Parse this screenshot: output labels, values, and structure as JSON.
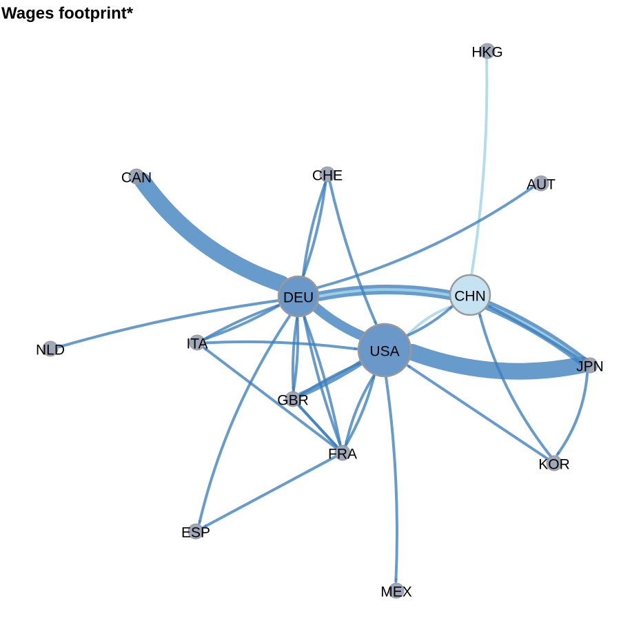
{
  "title": "Wages footprint*",
  "colors": {
    "edge_main": "#3c7fbd",
    "edge_light": "#a6d6ea",
    "node_dark": "#6a98c8",
    "node_light": "#c4e2f0",
    "node_grey": "#8e99ad",
    "node_border": "#999999"
  },
  "nodes": [
    {
      "id": "HKG",
      "label": "HKG",
      "size": "small"
    },
    {
      "id": "CAN",
      "label": "CAN",
      "size": "small"
    },
    {
      "id": "CHE",
      "label": "CHE",
      "size": "small"
    },
    {
      "id": "AUT",
      "label": "AUT",
      "size": "small"
    },
    {
      "id": "DEU",
      "label": "DEU",
      "size": "large"
    },
    {
      "id": "CHN",
      "label": "CHN",
      "size": "large"
    },
    {
      "id": "NLD",
      "label": "NLD",
      "size": "small"
    },
    {
      "id": "ITA",
      "label": "ITA",
      "size": "small"
    },
    {
      "id": "USA",
      "label": "USA",
      "size": "largest"
    },
    {
      "id": "JPN",
      "label": "JPN",
      "size": "small"
    },
    {
      "id": "GBR",
      "label": "GBR",
      "size": "small"
    },
    {
      "id": "FRA",
      "label": "FRA",
      "size": "small"
    },
    {
      "id": "KOR",
      "label": "KOR",
      "size": "small"
    },
    {
      "id": "ESP",
      "label": "ESP",
      "size": "small"
    },
    {
      "id": "MEX",
      "label": "MEX",
      "size": "small"
    }
  ],
  "edges": [
    {
      "from": "CAN",
      "to": "DEU",
      "weight": "very-heavy",
      "color": "main"
    },
    {
      "from": "CHN",
      "to": "DEU",
      "weight": "heavy",
      "color": "main"
    },
    {
      "from": "JPN",
      "to": "USA",
      "weight": "very-heavy",
      "color": "main"
    },
    {
      "from": "CHN",
      "to": "JPN",
      "weight": "heavy",
      "color": "main"
    },
    {
      "from": "DEU",
      "to": "USA",
      "weight": "heavy",
      "color": "main"
    },
    {
      "from": "CHN",
      "to": "HKG",
      "weight": "light",
      "color": "light"
    },
    {
      "from": "CHN",
      "to": "DEU",
      "weight": "light",
      "color": "light"
    },
    {
      "from": "CHN",
      "to": "JPN",
      "weight": "light",
      "color": "light"
    },
    {
      "from": "CHN",
      "to": "USA",
      "weight": "light",
      "color": "light"
    },
    {
      "from": "DEU",
      "to": "AUT",
      "weight": "light",
      "color": "main"
    },
    {
      "from": "DEU",
      "to": "NLD",
      "weight": "light",
      "color": "main"
    },
    {
      "from": "DEU",
      "to": "CHE",
      "weight": "light",
      "color": "main"
    },
    {
      "from": "CHE",
      "to": "DEU",
      "weight": "light",
      "color": "main"
    },
    {
      "from": "CHE",
      "to": "USA",
      "weight": "light",
      "color": "main"
    },
    {
      "from": "ITA",
      "to": "DEU",
      "weight": "light",
      "color": "main"
    },
    {
      "from": "DEU",
      "to": "ITA",
      "weight": "light",
      "color": "main"
    },
    {
      "from": "ITA",
      "to": "USA",
      "weight": "light",
      "color": "main"
    },
    {
      "from": "DEU",
      "to": "GBR",
      "weight": "light",
      "color": "main"
    },
    {
      "from": "GBR",
      "to": "DEU",
      "weight": "light",
      "color": "main"
    },
    {
      "from": "DEU",
      "to": "FRA",
      "weight": "light",
      "color": "main"
    },
    {
      "from": "FRA",
      "to": "DEU",
      "weight": "light",
      "color": "main"
    },
    {
      "from": "DEU",
      "to": "ESP",
      "weight": "light",
      "color": "main"
    },
    {
      "from": "USA",
      "to": "GBR",
      "weight": "medium",
      "color": "main"
    },
    {
      "from": "GBR",
      "to": "USA",
      "weight": "light",
      "color": "main"
    },
    {
      "from": "USA",
      "to": "CHN",
      "weight": "light",
      "color": "main"
    },
    {
      "from": "USA",
      "to": "MEX",
      "weight": "light",
      "color": "main"
    },
    {
      "from": "FRA",
      "to": "USA",
      "weight": "light",
      "color": "main"
    },
    {
      "from": "USA",
      "to": "FRA",
      "weight": "light",
      "color": "main"
    },
    {
      "from": "FRA",
      "to": "ITA",
      "weight": "light",
      "color": "main"
    },
    {
      "from": "FRA",
      "to": "GBR",
      "weight": "light",
      "color": "main"
    },
    {
      "from": "GBR",
      "to": "FRA",
      "weight": "light",
      "color": "main"
    },
    {
      "from": "FRA",
      "to": "ESP",
      "weight": "light",
      "color": "main"
    },
    {
      "from": "JPN",
      "to": "KOR",
      "weight": "light",
      "color": "main"
    },
    {
      "from": "KOR",
      "to": "CHN",
      "weight": "light",
      "color": "main"
    },
    {
      "from": "KOR",
      "to": "USA",
      "weight": "light",
      "color": "main"
    },
    {
      "from": "JPN",
      "to": "CHN",
      "weight": "light",
      "color": "main"
    }
  ]
}
